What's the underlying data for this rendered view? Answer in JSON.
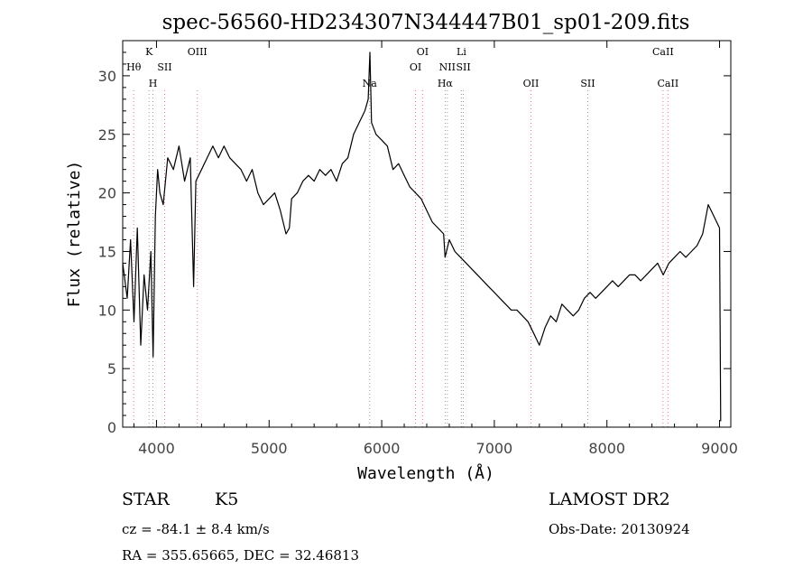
{
  "chart_data": {
    "type": "line",
    "title": "spec-56560-HD234307N344447B01_sp01-209.fits",
    "xlabel": "Wavelength (Å)",
    "ylabel": "Flux (relative)",
    "xlim": [
      3700,
      9100
    ],
    "ylim": [
      0,
      33
    ],
    "xticks": [
      "4000",
      "5000",
      "6000",
      "7000",
      "8000",
      "9000"
    ],
    "yticks": [
      "0",
      "5",
      "10",
      "15",
      "20",
      "25",
      "30"
    ],
    "xtick_values": [
      4000,
      5000,
      6000,
      7000,
      8000,
      9000
    ],
    "ytick_values": [
      0,
      5,
      10,
      15,
      20,
      25,
      30
    ],
    "grid": false,
    "series": [
      {
        "x": [
          3700,
          3740,
          3770,
          3800,
          3830,
          3860,
          3890,
          3920,
          3950,
          3970,
          3990,
          4010,
          4030,
          4060,
          4100,
          4150,
          4200,
          4250,
          4300,
          4330,
          4350,
          4400,
          4450,
          4500,
          4550,
          4600,
          4650,
          4700,
          4750,
          4800,
          4850,
          4900,
          4950,
          5000,
          5050,
          5100,
          5150,
          5180,
          5200,
          5250,
          5300,
          5350,
          5400,
          5450,
          5500,
          5550,
          5600,
          5650,
          5700,
          5750,
          5800,
          5850,
          5880,
          5895,
          5910,
          5950,
          6000,
          6050,
          6100,
          6150,
          6200,
          6250,
          6300,
          6350,
          6400,
          6450,
          6500,
          6550,
          6563,
          6600,
          6650,
          6700,
          6750,
          6800,
          6850,
          6900,
          6950,
          7000,
          7050,
          7100,
          7150,
          7200,
          7250,
          7300,
          7350,
          7400,
          7450,
          7500,
          7550,
          7600,
          7650,
          7700,
          7750,
          7800,
          7850,
          7900,
          7950,
          8000,
          8050,
          8100,
          8150,
          8200,
          8250,
          8300,
          8350,
          8400,
          8450,
          8500,
          8550,
          8600,
          8650,
          8700,
          8750,
          8800,
          8850,
          8900,
          8950,
          9000,
          9010
        ],
        "y": [
          14,
          11,
          16,
          9,
          17,
          7,
          13,
          10,
          15,
          6,
          18,
          22,
          20,
          19,
          23,
          22,
          24,
          21,
          23,
          12,
          21,
          22,
          23,
          24,
          23,
          24,
          23,
          22.5,
          22,
          21,
          22,
          20,
          19,
          19.5,
          20,
          18.5,
          16.5,
          17,
          19.5,
          20,
          21,
          21.5,
          21,
          22,
          21.5,
          22,
          21,
          22.5,
          23,
          25,
          26,
          27,
          28,
          32,
          26,
          25,
          24.5,
          24,
          22,
          22.5,
          21.5,
          20.5,
          20,
          19.5,
          18.5,
          17.5,
          17,
          16.5,
          14.5,
          16,
          15,
          14.5,
          14,
          13.5,
          13,
          12.5,
          12,
          11.5,
          11,
          10.5,
          10,
          10,
          9.5,
          9,
          8,
          7,
          8.5,
          9.5,
          9,
          10.5,
          10,
          9.5,
          10,
          11,
          11.5,
          11,
          11.5,
          12,
          12.5,
          12,
          12.5,
          13,
          13,
          12.5,
          13,
          13.5,
          14,
          13,
          14,
          14.5,
          15,
          14.5,
          15,
          15.5,
          16.5,
          19,
          18,
          17,
          0.5
        ]
      }
    ],
    "line_colors": {
      "spectrum": "#000000",
      "markers": "#d08080",
      "frame": "#000000"
    },
    "line_markers": [
      {
        "label": "Hθ",
        "wavelength": 3798,
        "row": 1
      },
      {
        "label": "K",
        "wavelength": 3934,
        "row": 0
      },
      {
        "label": "H",
        "wavelength": 3969,
        "row": 2
      },
      {
        "label": "SII",
        "wavelength": 4072,
        "row": 1
      },
      {
        "label": "OIII",
        "wavelength": 4363,
        "row": 0
      },
      {
        "label": "Na",
        "wavelength": 5893,
        "row": 2
      },
      {
        "label": "OI",
        "wavelength": 6300,
        "row": 1
      },
      {
        "label": "OI",
        "wavelength": 6363,
        "row": 0
      },
      {
        "label": "Hα",
        "wavelength": 6563,
        "row": 2
      },
      {
        "label": "NII",
        "wavelength": 6583,
        "row": 1
      },
      {
        "label": "Li",
        "wavelength": 6708,
        "row": 0
      },
      {
        "label": "SII",
        "wavelength": 6725,
        "row": 1
      },
      {
        "label": "OII",
        "wavelength": 7325,
        "row": 2
      },
      {
        "label": "SII",
        "wavelength": 7830,
        "row": 2
      },
      {
        "label": "CaII",
        "wavelength": 8498,
        "row": 0
      },
      {
        "label": "CaII",
        "wavelength": 8542,
        "row": 2
      }
    ]
  },
  "info": {
    "class": "STAR",
    "subclass": "K5",
    "survey": "LAMOST DR2",
    "cz": "cz = -84.1 ± 8.4 km/s",
    "obs_date": "Obs-Date: 20130924",
    "coords": "RA = 355.65665, DEC =  32.46813"
  }
}
